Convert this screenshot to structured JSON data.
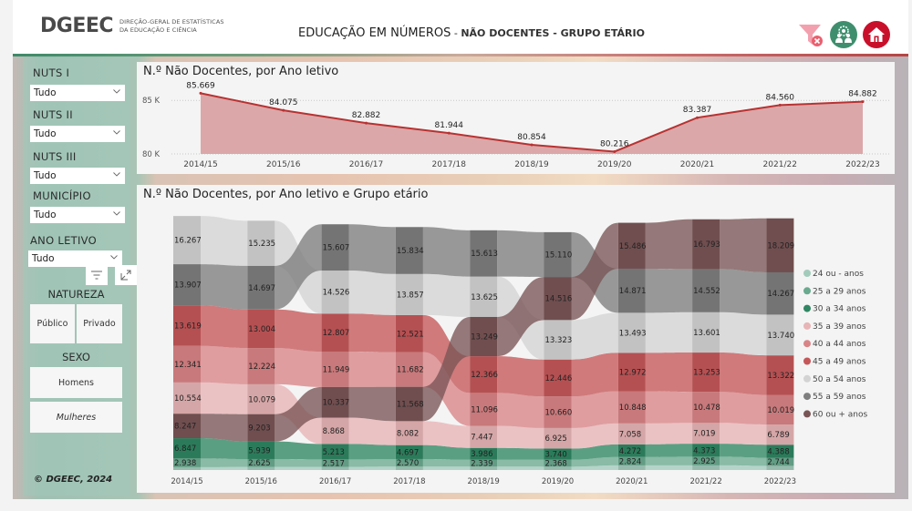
{
  "header": {
    "logo_text": "DGEEC",
    "logo_sub_line1": "DIREÇÃO-GERAL DE ESTATÍSTICAS",
    "logo_sub_line2": "DA EDUCAÇÃO E CIÊNCIA",
    "title_main": "EDUCAÇÃO EM NÚMEROS",
    "title_sep": " - ",
    "title_sub": "NÃO DOCENTES - GRUPO ETÁRIO",
    "icons": [
      "clear-filters-icon",
      "people-settings-icon",
      "home-icon"
    ],
    "colors": {
      "clear_filter": "#f08ea0",
      "people": "#3f8f6e",
      "home": "#c9102b"
    }
  },
  "sidebar": {
    "slicers": [
      {
        "label": "NUTS I",
        "value": "Tudo"
      },
      {
        "label": "NUTS II",
        "value": "Tudo"
      },
      {
        "label": "NUTS III",
        "value": "Tudo"
      },
      {
        "label": "MUNICÍPIO",
        "value": "Tudo"
      },
      {
        "label": "ANO LETIVO",
        "value": "Tudo"
      }
    ],
    "natureza": {
      "label": "NATUREZA",
      "options": [
        "Público",
        "Privado"
      ]
    },
    "sexo": {
      "label": "SEXO",
      "options": [
        "Homens",
        "Mulheres"
      ]
    },
    "copyright": "© DGEEC, 2024"
  },
  "chart_data": [
    {
      "type": "area",
      "title": "N.º Não Docentes, por Ano letivo",
      "xlabel": "",
      "ylabel": "",
      "categories": [
        "2014/15",
        "2015/16",
        "2016/17",
        "2017/18",
        "2018/19",
        "2019/20",
        "2020/21",
        "2021/22",
        "2022/23"
      ],
      "values": [
        85669,
        84075,
        82882,
        81944,
        80854,
        80216,
        83387,
        84560,
        84882
      ],
      "data_labels": [
        "85.669",
        "84.075",
        "82.882",
        "81.944",
        "80.854",
        "80.216",
        "83.387",
        "84.560",
        "84.882"
      ],
      "yticks": [
        80000,
        85000
      ],
      "ytick_labels": [
        "80 K",
        "85 K"
      ],
      "ylim": [
        80000,
        85700
      ],
      "grid": true,
      "line_color": "#b83232",
      "fill_color": "#dba7a8"
    },
    {
      "type": "ribbon",
      "title": "N.º Não Docentes, por Ano letivo e Grupo etário",
      "categories": [
        "2014/15",
        "2015/16",
        "2016/17",
        "2017/18",
        "2018/19",
        "2019/20",
        "2020/21",
        "2021/22",
        "2022/23"
      ],
      "legend_position": "right",
      "series": [
        {
          "name": "24 ou - anos",
          "color": "#a3cbbc",
          "labeled": false,
          "values": [
            949,
            1069,
            1058,
            1133,
            1133,
            1128,
            1563,
            1566,
            1404
          ]
        },
        {
          "name": "25 a 29 anos",
          "color": "#6aaa8f",
          "labeled": true,
          "values": [
            2938,
            2625,
            2517,
            2570,
            2339,
            2368,
            2824,
            2925,
            2744
          ]
        },
        {
          "name": "30 a 34 anos",
          "color": "#2f8662",
          "labeled": true,
          "values": [
            6847,
            5939,
            5213,
            4697,
            3986,
            3740,
            4272,
            4373,
            4388
          ]
        },
        {
          "name": "35 a 39 anos",
          "color": "#e8b4b6",
          "labeled": true,
          "values": [
            10554,
            10079,
            8868,
            8082,
            7447,
            6925,
            7058,
            7019,
            6789
          ]
        },
        {
          "name": "40 a 44 anos",
          "color": "#d98486",
          "labeled": true,
          "values": [
            12341,
            12224,
            11949,
            11682,
            11096,
            10660,
            10848,
            10478,
            10019
          ]
        },
        {
          "name": "45 a 49 anos",
          "color": "#c55759",
          "labeled": true,
          "values": [
            13619,
            13004,
            12807,
            12521,
            12366,
            12446,
            12972,
            13253,
            13322
          ]
        },
        {
          "name": "50 a 54 anos",
          "color": "#d3d3d3",
          "labeled": true,
          "values": [
            16267,
            15235,
            14526,
            13857,
            13625,
            13323,
            13493,
            13601,
            13740
          ]
        },
        {
          "name": "55 a 59 anos",
          "color": "#7e7e7e",
          "labeled": true,
          "values": [
            13907,
            14697,
            15607,
            15834,
            15613,
            15110,
            14871,
            14552,
            14267
          ]
        },
        {
          "name": "60 ou + anos",
          "color": "#7a5556",
          "labeled": true,
          "values": [
            8247,
            9203,
            10337,
            11568,
            13249,
            14516,
            15486,
            16793,
            18209
          ]
        }
      ]
    }
  ]
}
